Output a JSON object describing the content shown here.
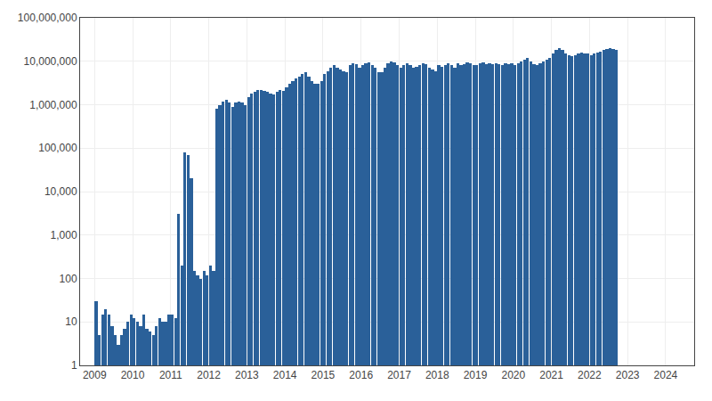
{
  "chart_data": {
    "type": "bar",
    "x": [
      2009.0416666666667,
      2009.125,
      2009.2083333333333,
      2009.2916666666667,
      2009.375,
      2009.4583333333333,
      2009.5416666666667,
      2009.625,
      2009.7083333333333,
      2009.7916666666667,
      2009.875,
      2009.9583333333333,
      2010.0416666666667,
      2010.125,
      2010.2083333333333,
      2010.2916666666667,
      2010.375,
      2010.4583333333333,
      2010.5416666666667,
      2010.625,
      2010.7083333333333,
      2010.7916666666667,
      2010.875,
      2010.9583333333333,
      2011.0416666666667,
      2011.125,
      2011.2083333333333,
      2011.2916666666667,
      2011.375,
      2011.4583333333333,
      2011.5416666666667,
      2011.625,
      2011.7083333333333,
      2011.7916666666667,
      2011.875,
      2011.9583333333333,
      2012.0416666666667,
      2012.125,
      2012.2083333333333,
      2012.2916666666667,
      2012.375,
      2012.4583333333333,
      2012.5416666666667,
      2012.625,
      2012.7083333333333,
      2012.7916666666667,
      2012.875,
      2012.9583333333333,
      2013.0416666666667,
      2013.125,
      2013.2083333333333,
      2013.2916666666667,
      2013.375,
      2013.4583333333333,
      2013.5416666666667,
      2013.625,
      2013.7083333333333,
      2013.7916666666667,
      2013.875,
      2013.9583333333333,
      2014.0416666666667,
      2014.125,
      2014.2083333333333,
      2014.2916666666667,
      2014.375,
      2014.4583333333333,
      2014.5416666666667,
      2014.625,
      2014.7083333333333,
      2014.7916666666667,
      2014.875,
      2014.9583333333333,
      2015.0416666666667,
      2015.125,
      2015.2083333333333,
      2015.2916666666667,
      2015.375,
      2015.4583333333333,
      2015.5416666666667,
      2015.625,
      2015.7083333333333,
      2015.7916666666667,
      2015.875,
      2015.9583333333333,
      2016.0416666666667,
      2016.125,
      2016.2083333333333,
      2016.2916666666667,
      2016.375,
      2016.4583333333333,
      2016.5416666666667,
      2016.625,
      2016.7083333333333,
      2016.7916666666667,
      2016.875,
      2016.9583333333333,
      2017.0416666666667,
      2017.125,
      2017.2083333333333,
      2017.2916666666667,
      2017.375,
      2017.4583333333333,
      2017.5416666666667,
      2017.625,
      2017.7083333333333,
      2017.7916666666667,
      2017.875,
      2017.9583333333333,
      2018.0416666666667,
      2018.125,
      2018.2083333333333,
      2018.2916666666667,
      2018.375,
      2018.4583333333333,
      2018.5416666666667,
      2018.625,
      2018.7083333333333,
      2018.7916666666667,
      2018.875,
      2018.9583333333333,
      2019.0416666666667,
      2019.125,
      2019.2083333333333,
      2019.2916666666667,
      2019.375,
      2019.4583333333333,
      2019.5416666666667,
      2019.625,
      2019.7083333333333,
      2019.7916666666667,
      2019.875,
      2019.9583333333333,
      2020.0416666666667,
      2020.125,
      2020.2083333333333,
      2020.2916666666667,
      2020.375,
      2020.4583333333333,
      2020.5416666666667,
      2020.625,
      2020.7083333333333,
      2020.7916666666667,
      2020.875,
      2020.9583333333333,
      2021.0416666666667,
      2021.125,
      2021.2083333333333,
      2021.2916666666667,
      2021.375,
      2021.4583333333333,
      2021.5416666666667,
      2021.625,
      2021.7083333333333,
      2021.7916666666667,
      2021.875,
      2021.9583333333333,
      2022.0416666666667,
      2022.125,
      2022.2083333333333,
      2022.2916666666667,
      2022.375,
      2022.4583333333333,
      2022.5416666666667,
      2022.625,
      2022.7083333333333
    ],
    "values": [
      30,
      5,
      15,
      20,
      15,
      8,
      5,
      3,
      5,
      7,
      10,
      15,
      12,
      10,
      8,
      15,
      7,
      6,
      5,
      8,
      12,
      10,
      10,
      15,
      15,
      12,
      3000,
      200,
      80000,
      70000,
      20000,
      150,
      120,
      100,
      150,
      120,
      200,
      150,
      800000,
      1000000,
      1200000,
      1300000,
      1100000,
      900000,
      1100000,
      1200000,
      1100000,
      1000000,
      1500000,
      1800000,
      2000000,
      2200000,
      2200000,
      2100000,
      2000000,
      1800000,
      1700000,
      2000000,
      2200000,
      2100000,
      2500000,
      3000000,
      3500000,
      4000000,
      4500000,
      5000000,
      5500000,
      4500000,
      3500000,
      3000000,
      3000000,
      3500000,
      5000000,
      6000000,
      7000000,
      8000000,
      7000000,
      6500000,
      6000000,
      5500000,
      8000000,
      9000000,
      8500000,
      7000000,
      8000000,
      9000000,
      9500000,
      8000000,
      7000000,
      5500000,
      5500000,
      7000000,
      9000000,
      10000000,
      9500000,
      8000000,
      7000000,
      8000000,
      9000000,
      8000000,
      7000000,
      7500000,
      8000000,
      9000000,
      8500000,
      7000000,
      6500000,
      6000000,
      8000000,
      7500000,
      8000000,
      9000000,
      8000000,
      7000000,
      9000000,
      8000000,
      8500000,
      9500000,
      9000000,
      8000000,
      8000000,
      9000000,
      9500000,
      8500000,
      9000000,
      8500000,
      9000000,
      8500000,
      8000000,
      9000000,
      8500000,
      9000000,
      8000000,
      9000000,
      10000000,
      11000000,
      12000000,
      10000000,
      8500000,
      8000000,
      9000000,
      10000000,
      11000000,
      12000000,
      15000000,
      18000000,
      20000000,
      18000000,
      15000000,
      14000000,
      13000000,
      14000000,
      15000000,
      16000000,
      15000000,
      15000000,
      14000000,
      15000000,
      16000000,
      17000000,
      18000000,
      19000000,
      20000000,
      19000000,
      18000000
    ],
    "color": "#2a6099",
    "log": "y",
    "grid": true,
    "xlim": [
      2008.62,
      2024.75
    ],
    "xticks": [
      2009,
      2010,
      2011,
      2012,
      2013,
      2014,
      2015,
      2016,
      2017,
      2018,
      2019,
      2020,
      2021,
      2022,
      2023,
      2024
    ],
    "ylim": [
      1,
      100000000
    ],
    "yticks": [
      1,
      10,
      100,
      {
        "value": 1000,
        "label": "1,000"
      },
      {
        "value": 10000,
        "label": "10,000"
      },
      {
        "value": 100000,
        "label": "100,000"
      },
      {
        "value": 1000000,
        "label": "1,000,000"
      },
      {
        "value": 10000000,
        "label": "10,000,000"
      },
      {
        "value": 100000000,
        "label": "100,000,000"
      }
    ]
  }
}
